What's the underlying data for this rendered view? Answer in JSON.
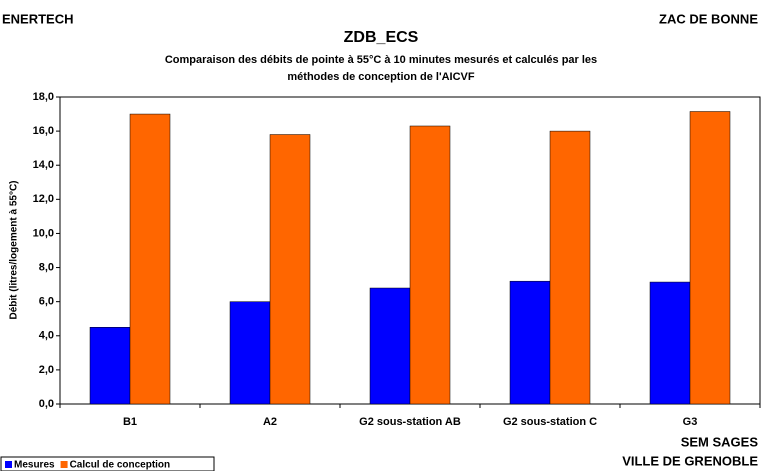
{
  "chart_data": {
    "type": "bar",
    "title": "ZDB_ECS",
    "subtitle": [
      "Comparaison des débits de pointe à 55°C à 10 minutes mesurés et calculés par les",
      "méthodes de conception de l'AICVF"
    ],
    "corner_texts": {
      "top_left": "ENERTECH",
      "top_right": "ZAC DE BONNE",
      "bottom_right": [
        "SEM SAGES",
        "VILLE DE GRENOBLE"
      ]
    },
    "y_label": "Débit (litres/logement à 55°C)",
    "categories": [
      "B1",
      "A2",
      "G2 sous-station AB",
      "G2 sous-station C",
      "G3"
    ],
    "series": [
      {
        "name": "Mesures",
        "color": "#0000ff",
        "values": [
          4.5,
          6.0,
          6.8,
          7.2,
          7.15
        ]
      },
      {
        "name": "Calcul de conception",
        "color": "#ff6600",
        "values": [
          17.0,
          15.8,
          16.3,
          16.0,
          17.15
        ]
      }
    ],
    "ylim": [
      0,
      18
    ],
    "yticks": [
      {
        "value": 0,
        "label": "0,0"
      },
      {
        "value": 2,
        "label": "2,0"
      },
      {
        "value": 4,
        "label": "4,0"
      },
      {
        "value": 6,
        "label": "6,0"
      },
      {
        "value": 8,
        "label": "8,0"
      },
      {
        "value": 10,
        "label": "10,0"
      },
      {
        "value": 12,
        "label": "12,0"
      },
      {
        "value": 14,
        "label": "14,0"
      },
      {
        "value": 16,
        "label": "16,0"
      },
      {
        "value": 18,
        "label": "18,0"
      }
    ],
    "legend": "bottom-left"
  }
}
